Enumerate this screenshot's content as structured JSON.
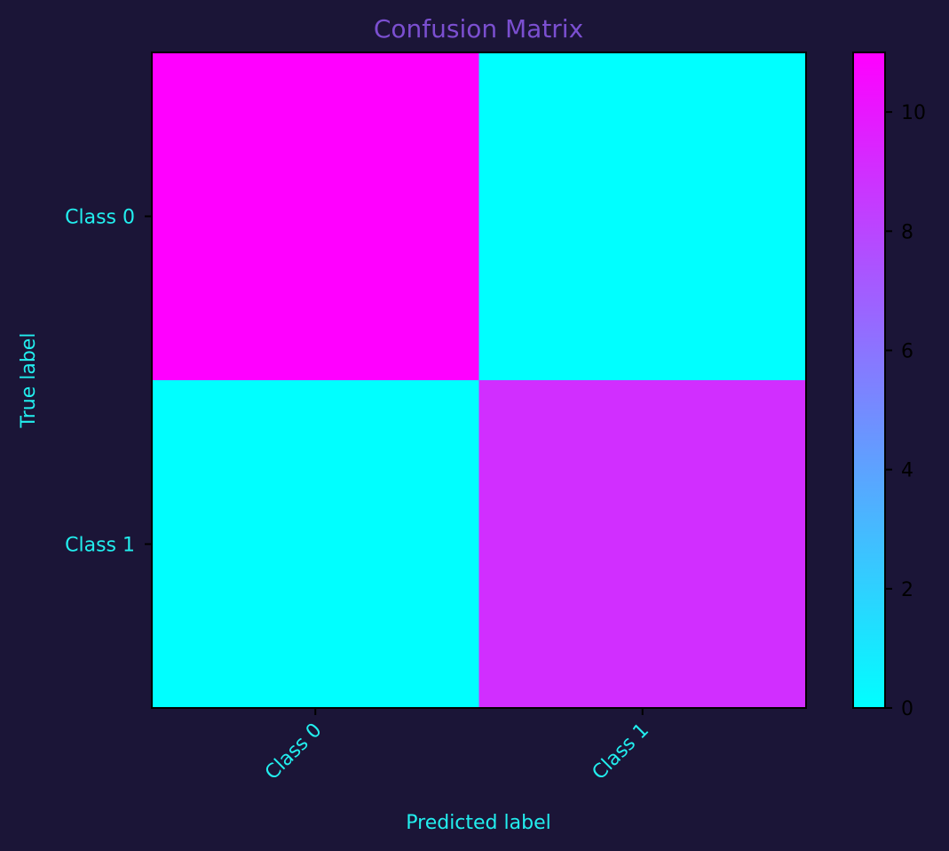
{
  "chart_data": {
    "type": "heatmap",
    "title": "Confusion Matrix",
    "xlabel": "Predicted label",
    "ylabel": "True label",
    "x_categories": [
      "Class 0",
      "Class 1"
    ],
    "y_categories": [
      "Class 0",
      "Class 1"
    ],
    "values": [
      [
        11,
        0
      ],
      [
        0,
        9
      ]
    ],
    "colormap": "cool",
    "colorbar": {
      "min": 0,
      "max": 11,
      "ticks": [
        0,
        2,
        4,
        6,
        8,
        10
      ],
      "tick_labels": [
        "0",
        "2",
        "4",
        "6",
        "8",
        "10"
      ]
    },
    "grid": false
  },
  "colors": {
    "background": "#1b1537",
    "title": "#7b4fd0",
    "label": "#22eeee",
    "colorbar_tick_label": "#000000",
    "cmap_low": "#00ffff",
    "cmap_high": "#ff00ff"
  }
}
